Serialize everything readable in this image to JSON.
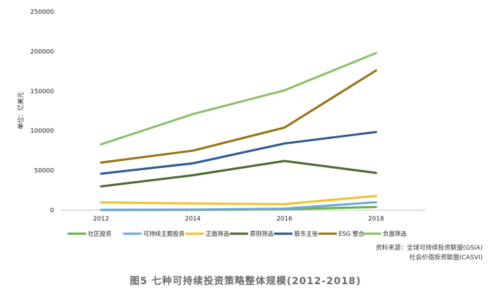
{
  "chart_data": {
    "type": "line",
    "x": [
      2012,
      2014,
      2016,
      2018
    ],
    "ylabel": "单位：亿美元",
    "ylim": [
      0,
      250000
    ],
    "yticks": [
      0,
      50000,
      100000,
      150000,
      200000,
      250000
    ],
    "grid": false,
    "legend_position": "bottom",
    "series": [
      {
        "name": "社区投资",
        "color": "#6ab04c",
        "values": [
          200,
          300,
          1200,
          4000
        ]
      },
      {
        "name": "可持续主题投资",
        "color": "#6fa8dc",
        "values": [
          500,
          800,
          2000,
          10000
        ]
      },
      {
        "name": "正面筛选",
        "color": "#f1c232",
        "values": [
          9800,
          8500,
          7600,
          18000
        ]
      },
      {
        "name": "原则筛选",
        "color": "#4b6b2e",
        "values": [
          30000,
          44000,
          62000,
          47000
        ]
      },
      {
        "name": "股东主张",
        "color": "#2e5b8f",
        "values": [
          46000,
          59000,
          84000,
          98500
        ]
      },
      {
        "name": "ESG 整合",
        "color": "#9a7415",
        "values": [
          60000,
          75000,
          104000,
          176000
        ]
      },
      {
        "name": "负面筛选",
        "color": "#8bc16a",
        "values": [
          83000,
          121000,
          151000,
          198000
        ]
      }
    ]
  },
  "source": {
    "line1": "资料来源：全球可持续投资联盟(GSIA)",
    "line2": "社会价值投资联盟(CASVI)"
  },
  "caption": "图5  七种可持续投资策略整体规模(2012-2018)"
}
